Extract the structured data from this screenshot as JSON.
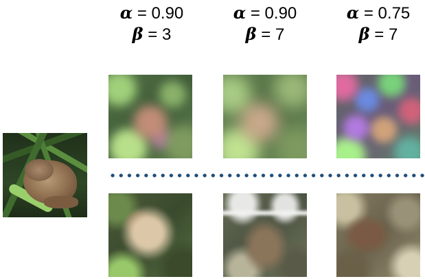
{
  "columns": [
    {
      "alpha_symbol": "α",
      "alpha_text": " = 0.90",
      "beta_symbol": "β",
      "beta_text": " = 3"
    },
    {
      "alpha_symbol": "α",
      "alpha_text": " = 0.90",
      "beta_symbol": "β",
      "beta_text": " = 7"
    },
    {
      "alpha_symbol": "α",
      "alpha_text": " = 0.75",
      "beta_symbol": "β",
      "beta_text": " = 7"
    }
  ],
  "images": {
    "original": "frog-original-image",
    "top_row": [
      "noisy-frog-image",
      "noisy-frog-image",
      "noisy-frog-image"
    ],
    "bottom_row": [
      "reconstructed-image",
      "reconstructed-image",
      "reconstructed-image"
    ]
  },
  "separator_color": "#1f4e79"
}
